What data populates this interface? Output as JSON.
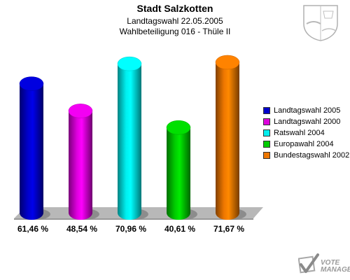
{
  "chart_data": {
    "type": "bar",
    "title": "Stadt Salzkotten",
    "subtitle_line1": "Landtagswahl 22.05.2005",
    "subtitle_line2": "Wahlbeteiligung 016 - Thüle II",
    "categories": [
      "Landtagswahl 2005",
      "Landtagswahl 2000",
      "Ratswahl 2004",
      "Europawahl 2004",
      "Bundestagswahl 2002"
    ],
    "values": [
      61.46,
      48.54,
      70.96,
      40.61,
      71.67
    ],
    "value_labels": [
      "61,46 %",
      "48,54 %",
      "70,96 %",
      "40,61 %",
      "71,67 %"
    ],
    "colors": [
      "#0000cc",
      "#dd00dd",
      "#00eeee",
      "#00cc00",
      "#ee7700"
    ],
    "xlabel": "",
    "ylabel": "",
    "ylim": [
      0,
      75
    ],
    "grid": false,
    "legend_position": "right"
  },
  "legend": {
    "items": [
      "Landtagswahl 2005",
      "Landtagswahl 2000",
      "Ratswahl 2004",
      "Europawahl 2004",
      "Bundestagswahl 2002"
    ]
  },
  "branding": {
    "logo_text": "VOTE\nMANAGER",
    "logo_icon": "vote-manager-checkmark-icon",
    "crest_icon": "coat-of-arms-icon"
  }
}
